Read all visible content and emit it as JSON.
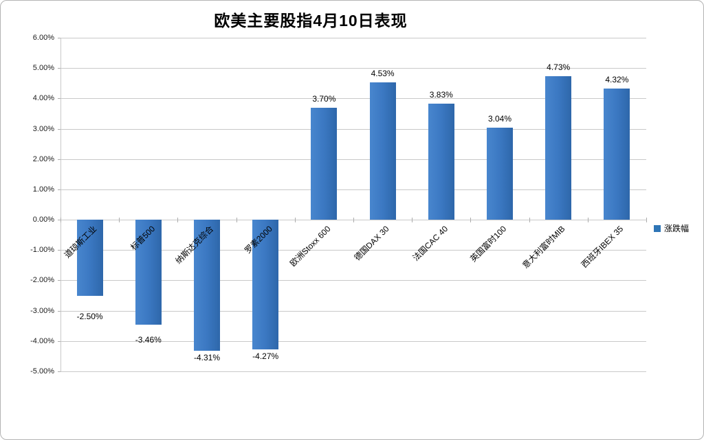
{
  "title": "欧美主要股指4月10日表现",
  "legend": {
    "label": "涨跌幅",
    "color": "#2e75b6"
  },
  "colors": {
    "bar_gradient_start": "#4886ce",
    "bar_gradient_mid": "#3b78c2",
    "bar_gradient_end": "#2e67aa",
    "gridline": "#c8c8c8",
    "axis": "#ababab",
    "frame_border": "#b3b3b3",
    "text": "#000000"
  },
  "chart_data": {
    "type": "bar",
    "title": "欧美主要股指4月10日表现",
    "series_name": "涨跌幅",
    "categories": [
      "道琼斯工业",
      "标普500",
      "纳斯达克综合",
      "罗素2000",
      "欧洲Stoxx 600",
      "德国DAX 30",
      "法国CAC 40",
      "英国富时100",
      "意大利富时MIB",
      "西班牙IBEX 35"
    ],
    "values": [
      -2.5,
      -3.46,
      -4.31,
      -4.27,
      3.7,
      4.53,
      3.83,
      3.04,
      4.73,
      4.32
    ],
    "value_labels": [
      "-2.50%",
      "-3.46%",
      "-4.31%",
      "-4.27%",
      "3.70%",
      "4.53%",
      "3.83%",
      "3.04%",
      "4.73%",
      "4.32%"
    ],
    "unit": "%",
    "xlabel": "",
    "ylabel": "",
    "ylim": [
      -5,
      6
    ],
    "y_step": 1,
    "y_tick_labels": [
      "6.00%",
      "5.00%",
      "4.00%",
      "3.00%",
      "2.00%",
      "1.00%",
      "0.00%",
      "-1.00%",
      "-2.00%",
      "-3.00%",
      "-4.00%",
      "-5.00%"
    ],
    "grid": true,
    "legend_position": "right-middle",
    "label_position": "outside-end"
  }
}
